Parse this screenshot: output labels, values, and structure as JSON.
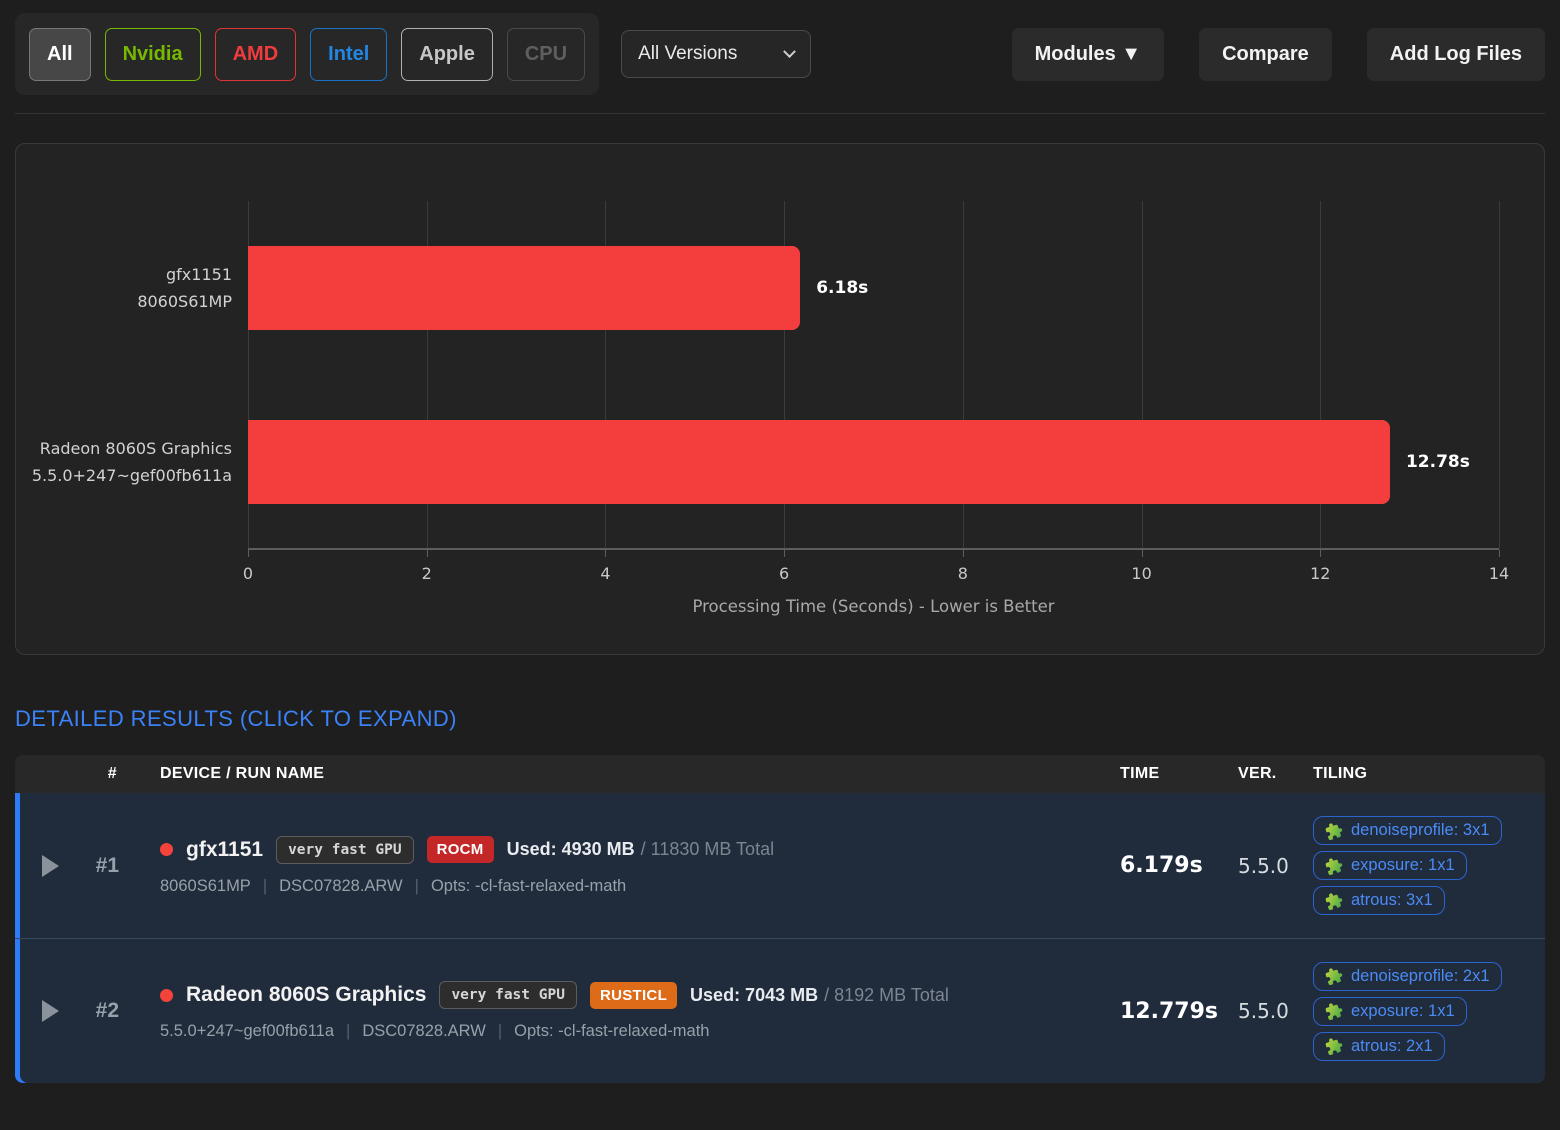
{
  "toolbar": {
    "filters": [
      {
        "label": "All",
        "color": "#ffffff",
        "border": "#787878",
        "active": true
      },
      {
        "label": "Nvidia",
        "color": "#76b900",
        "border": "#76b900",
        "active": false
      },
      {
        "label": "AMD",
        "color": "#f03c3c",
        "border": "#e03535",
        "active": false
      },
      {
        "label": "Intel",
        "color": "#2287e2",
        "border": "#1b72c4",
        "active": false
      },
      {
        "label": "Apple",
        "color": "#c8c8c8",
        "border": "#b0b0b0",
        "active": false
      },
      {
        "label": "CPU",
        "color": "#5f5f5f",
        "border": "#4a4a4a",
        "active": false
      }
    ],
    "versions_select": {
      "value": "All Versions"
    },
    "actions": {
      "modules": "Modules ▼",
      "compare": "Compare",
      "add_logs": "Add Log Files"
    }
  },
  "chart_data": {
    "type": "bar",
    "orientation": "horizontal",
    "xlabel": "Processing Time (Seconds) - Lower is Better",
    "xlim": [
      0,
      14
    ],
    "xticks": [
      0,
      2,
      4,
      6,
      8,
      10,
      12,
      14
    ],
    "grid": true,
    "bar_color": "#f43d3d",
    "series": [
      {
        "label_lines": [
          "gfx1151",
          "8060S61MP"
        ],
        "value": 6.18,
        "value_label": "6.18s"
      },
      {
        "label_lines": [
          "Radeon 8060S Graphics",
          "5.5.0+247~gef00fb611a"
        ],
        "value": 12.78,
        "value_label": "12.78s"
      }
    ]
  },
  "results": {
    "heading": "DETAILED RESULTS (CLICK TO EXPAND)",
    "separator": "|",
    "columns": {
      "num": "#",
      "device": "DEVICE / RUN NAME",
      "time": "TIME",
      "version": "VER.",
      "tiling": "TILING"
    },
    "rows": [
      {
        "num": "#1",
        "device": "gfx1151",
        "speed_badge": "very fast GPU",
        "api_badge": "ROCM",
        "api_color": "#c42727",
        "mem_used": "Used: 4930 MB",
        "mem_total": "/ 11830 MB Total",
        "sub_device": "8060S61MP",
        "sub_file": "DSC07828.ARW",
        "sub_opts": "Opts: -cl-fast-relaxed-math",
        "time": "6.179s",
        "version": "5.5.0",
        "tiling": [
          "denoiseprofile: 3x1",
          "exposure: 1x1",
          "atrous: 3x1"
        ]
      },
      {
        "num": "#2",
        "device": "Radeon 8060S Graphics",
        "speed_badge": "very fast GPU",
        "api_badge": "RUSTICL",
        "api_color": "#dd6b17",
        "mem_used": "Used: 7043 MB",
        "mem_total": "/ 8192 MB Total",
        "sub_device": "5.5.0+247~gef00fb611a",
        "sub_file": "DSC07828.ARW",
        "sub_opts": "Opts: -cl-fast-relaxed-math",
        "time": "12.779s",
        "version": "5.5.0",
        "tiling": [
          "denoiseprofile: 2x1",
          "exposure: 1x1",
          "atrous: 2x1"
        ]
      }
    ]
  }
}
